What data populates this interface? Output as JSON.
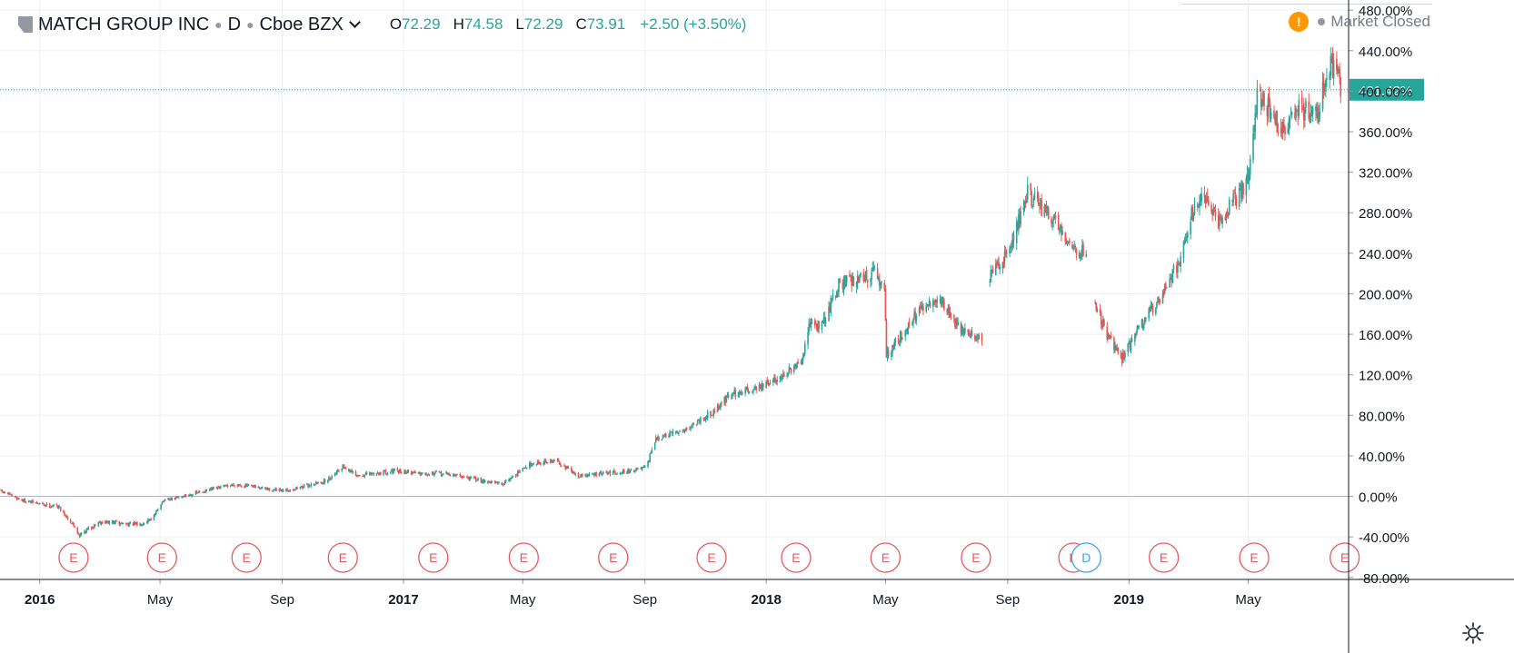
{
  "legend": {
    "symbol": "MATCH GROUP INC",
    "interval": "D",
    "exchange": "Cboe BZX",
    "o_label": "O",
    "o_value": "72.29",
    "h_label": "H",
    "h_value": "74.58",
    "l_label": "L",
    "l_value": "72.29",
    "c_label": "C",
    "c_value": "73.91",
    "change": "+2.50 (+3.50%)"
  },
  "status": {
    "text": "Market Closed",
    "warning_icon": "warning-icon",
    "warning_glyph": "!"
  },
  "colors": {
    "up": "#26a69a",
    "down": "#ef5350",
    "grid": "#edf0f3",
    "axis_text": "#131722",
    "event_earnings": "#e55a62",
    "event_dividend": "#3ba5e9",
    "price_line": "#26a69a"
  },
  "chart_data": {
    "type": "candlestick",
    "scale": "percent",
    "y_unit": "%",
    "ylim": [
      -82,
      490
    ],
    "y_ticks": [
      480,
      440,
      400,
      360,
      320,
      280,
      240,
      200,
      160,
      120,
      80,
      40,
      0,
      -40,
      -80
    ],
    "y_tick_labels": [
      "480.00%",
      "440.00%",
      "400.00%",
      "360.00%",
      "320.00%",
      "280.00%",
      "240.00%",
      "200.00%",
      "160.00%",
      "120.00%",
      "80.00%",
      "40.00%",
      "0.00%",
      "-40.00%",
      "-80.00%"
    ],
    "xlim": [
      "2015-11-22",
      "2019-08-10"
    ],
    "x_ticks": [
      "2016-01-01",
      "2016-05-01",
      "2016-09-01",
      "2017-01-01",
      "2017-05-01",
      "2017-09-01",
      "2018-01-01",
      "2018-05-01",
      "2018-09-01",
      "2019-01-01",
      "2019-05-01"
    ],
    "x_tick_labels": [
      "2016",
      "May",
      "Sep",
      "2017",
      "May",
      "Sep",
      "2018",
      "May",
      "Sep",
      "2019",
      "May"
    ],
    "current_value": 401.42,
    "current_label": "401.42%",
    "gaps": [
      [
        "2018-08-07",
        "2018-08-13"
      ],
      [
        "2018-11-20",
        "2018-11-27"
      ]
    ],
    "keypoints": [
      [
        "2015-11-23",
        5
      ],
      [
        "2015-12-15",
        -4
      ],
      [
        "2016-01-05",
        -8
      ],
      [
        "2016-01-20",
        -10
      ],
      [
        "2016-02-05",
        -30
      ],
      [
        "2016-02-10",
        -38
      ],
      [
        "2016-03-01",
        -25
      ],
      [
        "2016-04-10",
        -28
      ],
      [
        "2016-04-25",
        -20
      ],
      [
        "2016-05-03",
        -5
      ],
      [
        "2016-06-01",
        2
      ],
      [
        "2016-07-15",
        12
      ],
      [
        "2016-09-01",
        5
      ],
      [
        "2016-10-15",
        15
      ],
      [
        "2016-11-01",
        30
      ],
      [
        "2016-11-15",
        20
      ],
      [
        "2016-12-20",
        25
      ],
      [
        "2017-02-15",
        22
      ],
      [
        "2017-04-10",
        12
      ],
      [
        "2017-05-10",
        33
      ],
      [
        "2017-06-05",
        35
      ],
      [
        "2017-06-25",
        20
      ],
      [
        "2017-08-15",
        25
      ],
      [
        "2017-09-03",
        28
      ],
      [
        "2017-09-10",
        55
      ],
      [
        "2017-10-15",
        68
      ],
      [
        "2017-11-10",
        85
      ],
      [
        "2017-11-25",
        100
      ],
      [
        "2018-01-01",
        110
      ],
      [
        "2018-02-05",
        130
      ],
      [
        "2018-02-15",
        175
      ],
      [
        "2018-02-25",
        165
      ],
      [
        "2018-03-15",
        210
      ],
      [
        "2018-04-20",
        220
      ],
      [
        "2018-04-30",
        205
      ],
      [
        "2018-05-02",
        140
      ],
      [
        "2018-05-10",
        150
      ],
      [
        "2018-06-01",
        180
      ],
      [
        "2018-06-25",
        195
      ],
      [
        "2018-07-15",
        165
      ],
      [
        "2018-08-06",
        155
      ],
      [
        "2018-08-14",
        215
      ],
      [
        "2018-09-05",
        250
      ],
      [
        "2018-09-20",
        300
      ],
      [
        "2018-10-10",
        280
      ],
      [
        "2018-10-25",
        265
      ],
      [
        "2018-11-05",
        245
      ],
      [
        "2018-11-19",
        240
      ],
      [
        "2018-11-28",
        190
      ],
      [
        "2018-12-10",
        160
      ],
      [
        "2018-12-24",
        135
      ],
      [
        "2019-01-10",
        165
      ],
      [
        "2019-01-25",
        185
      ],
      [
        "2019-02-20",
        230
      ],
      [
        "2019-03-05",
        280
      ],
      [
        "2019-03-15",
        295
      ],
      [
        "2019-04-01",
        270
      ],
      [
        "2019-04-15",
        290
      ],
      [
        "2019-04-30",
        310
      ],
      [
        "2019-05-05",
        340
      ],
      [
        "2019-05-10",
        395
      ],
      [
        "2019-05-20",
        385
      ],
      [
        "2019-06-05",
        360
      ],
      [
        "2019-06-20",
        385
      ],
      [
        "2019-07-10",
        375
      ],
      [
        "2019-07-20",
        425
      ],
      [
        "2019-07-30",
        420
      ],
      [
        "2019-08-02",
        401
      ]
    ],
    "events": [
      {
        "type": "E",
        "date": "2016-02-04"
      },
      {
        "type": "E",
        "date": "2016-05-03"
      },
      {
        "type": "E",
        "date": "2016-07-27"
      },
      {
        "type": "E",
        "date": "2016-11-01"
      },
      {
        "type": "E",
        "date": "2017-01-31"
      },
      {
        "type": "E",
        "date": "2017-05-02"
      },
      {
        "type": "E",
        "date": "2017-07-31"
      },
      {
        "type": "E",
        "date": "2017-11-07"
      },
      {
        "type": "E",
        "date": "2018-01-31"
      },
      {
        "type": "E",
        "date": "2018-05-01"
      },
      {
        "type": "E",
        "date": "2018-07-31"
      },
      {
        "type": "E",
        "date": "2018-11-06"
      },
      {
        "type": "D",
        "date": "2018-11-19"
      },
      {
        "type": "E",
        "date": "2019-02-05"
      },
      {
        "type": "E",
        "date": "2019-05-07"
      },
      {
        "type": "E",
        "date": "2019-08-06"
      }
    ]
  }
}
